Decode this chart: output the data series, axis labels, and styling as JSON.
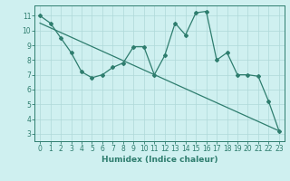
{
  "xlabel": "Humidex (Indice chaleur)",
  "xlim": [
    -0.5,
    23.5
  ],
  "ylim": [
    2.5,
    11.7
  ],
  "yticks": [
    3,
    4,
    5,
    6,
    7,
    8,
    9,
    10,
    11
  ],
  "xticks": [
    0,
    1,
    2,
    3,
    4,
    5,
    6,
    7,
    8,
    9,
    10,
    11,
    12,
    13,
    14,
    15,
    16,
    17,
    18,
    19,
    20,
    21,
    22,
    23
  ],
  "data_x": [
    0,
    1,
    2,
    3,
    4,
    5,
    6,
    7,
    8,
    9,
    10,
    11,
    12,
    13,
    14,
    15,
    16,
    17,
    18,
    19,
    20,
    21,
    22,
    23
  ],
  "data_y": [
    11.0,
    10.5,
    9.5,
    8.5,
    7.2,
    6.8,
    7.0,
    7.5,
    7.8,
    8.9,
    8.9,
    7.0,
    8.3,
    10.5,
    9.7,
    11.2,
    11.3,
    8.0,
    8.5,
    7.0,
    7.0,
    6.9,
    5.2,
    3.2
  ],
  "trend_x": [
    0,
    23
  ],
  "trend_y": [
    10.5,
    3.2
  ],
  "line_color": "#2e7d6e",
  "bg_color": "#cff0f0",
  "grid_color": "#aed8d8",
  "tick_label_fontsize": 5.5,
  "xlabel_fontsize": 6.5
}
